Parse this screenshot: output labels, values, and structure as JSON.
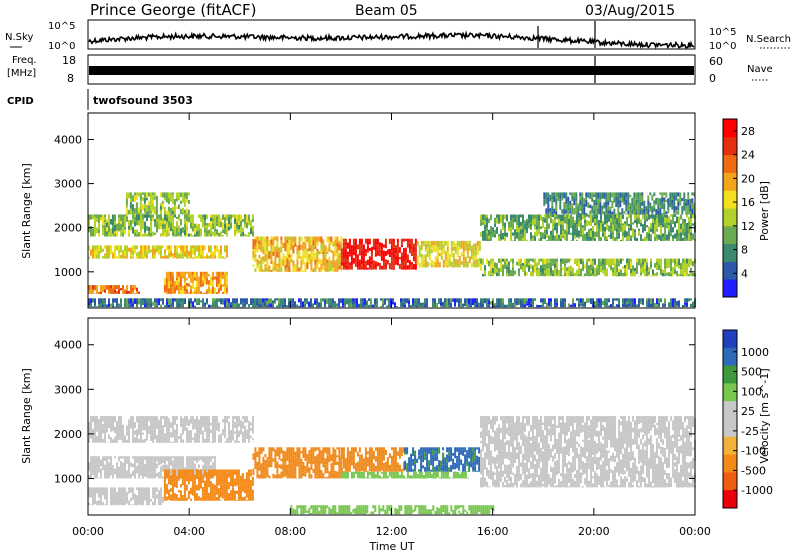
{
  "header": {
    "station": "Prince George (fitACF)",
    "beam": "Beam 05",
    "date": "03/Aug/2015"
  },
  "strip_labels": {
    "nsky": "N.Sky",
    "nsky_ticks": [
      "10^5",
      "10^0"
    ],
    "nsearch": "N.Search",
    "nsearch_ticks": [
      "10^5",
      "10^0"
    ],
    "freq_line1": "Freq.",
    "freq_line2": "[MHz]",
    "freq_ticks": [
      "18",
      "8"
    ],
    "nave": "Nave",
    "nave_ticks": [
      "60",
      "0"
    ],
    "cpid": "CPID",
    "cpid_value": "twofsound 3503"
  },
  "colors": {
    "power_scale": [
      "#1f1fff",
      "#2e58a8",
      "#3c8a6e",
      "#6aaa50",
      "#b2d22a",
      "#f2e01e",
      "#f2a41a",
      "#f06a12",
      "#e43010",
      "#ff0000"
    ],
    "velocity_scale": [
      "#e8000a",
      "#f05c10",
      "#f28a1a",
      "#f2b23a",
      "#c8c8c8",
      "#c8c8c8",
      "#78c850",
      "#3c9a3c",
      "#2e6ab8",
      "#2040c0"
    ]
  },
  "chart_data": [
    {
      "type": "heatmap",
      "title": "Power",
      "ylabel": "Slant Range [km]",
      "xlabel": "Time UT",
      "x_ticks": [
        "00:00",
        "04:00",
        "08:00",
        "12:00",
        "16:00",
        "20:00",
        "00:00"
      ],
      "y_ticks": [
        "1000",
        "2000",
        "3000",
        "4000"
      ],
      "xlim_hours": [
        0,
        24
      ],
      "ylim": [
        180,
        4600
      ],
      "colorbar_label": "Power [dB]",
      "colorbar_ticks": [
        "4",
        "8",
        "12",
        "16",
        "20",
        "24",
        "28"
      ],
      "colorbar_range": [
        0,
        30
      ],
      "echo_bands": [
        {
          "t0": 0.0,
          "t1": 6.5,
          "r0": 1800,
          "r1": 2300,
          "value": 12
        },
        {
          "t0": 0.0,
          "t1": 5.5,
          "r0": 1300,
          "r1": 1600,
          "value": 16
        },
        {
          "t0": 0.0,
          "t1": 2.0,
          "r0": 500,
          "r1": 700,
          "value": 22
        },
        {
          "t0": 3.0,
          "t1": 5.5,
          "r0": 500,
          "r1": 1000,
          "value": 20
        },
        {
          "t0": 1.5,
          "t1": 4.0,
          "r0": 2300,
          "r1": 2800,
          "value": 12
        },
        {
          "t0": 6.5,
          "t1": 10.0,
          "r0": 1000,
          "r1": 1800,
          "value": 18
        },
        {
          "t0": 10.0,
          "t1": 13.0,
          "r0": 1050,
          "r1": 1750,
          "value": 28
        },
        {
          "t0": 13.0,
          "t1": 15.5,
          "r0": 1100,
          "r1": 1700,
          "value": 16
        },
        {
          "t0": 15.5,
          "t1": 24.0,
          "r0": 900,
          "r1": 1300,
          "value": 12
        },
        {
          "t0": 15.5,
          "t1": 24.0,
          "r0": 1700,
          "r1": 2300,
          "value": 10
        },
        {
          "t0": 18.0,
          "t1": 24.0,
          "r0": 2300,
          "r1": 2800,
          "value": 8
        },
        {
          "t0": 0.0,
          "t1": 24.0,
          "r0": 200,
          "r1": 400,
          "value": 6
        }
      ]
    },
    {
      "type": "heatmap",
      "title": "Velocity",
      "ylabel": "Slant Range [km]",
      "xlabel": "Time UT",
      "x_ticks": [
        "00:00",
        "04:00",
        "08:00",
        "12:00",
        "16:00",
        "20:00",
        "00:00"
      ],
      "y_ticks": [
        "1000",
        "2000",
        "3000",
        "4000"
      ],
      "xlim_hours": [
        0,
        24
      ],
      "ylim": [
        180,
        4600
      ],
      "colorbar_label": "Velocity [m s^-1]",
      "colorbar_ticks": [
        "1000",
        "500",
        "100",
        "25",
        "-25",
        "-100",
        "-500",
        "-1000"
      ],
      "echo_bands": [
        {
          "t0": 0.0,
          "t1": 6.5,
          "r0": 1800,
          "r1": 2400,
          "value": 0
        },
        {
          "t0": 0.0,
          "t1": 5.0,
          "r0": 1000,
          "r1": 1500,
          "value": 0
        },
        {
          "t0": 0.0,
          "t1": 3.0,
          "r0": 400,
          "r1": 800,
          "value": 0
        },
        {
          "t0": 3.0,
          "t1": 6.5,
          "r0": 500,
          "r1": 1200,
          "value": -150
        },
        {
          "t0": 6.5,
          "t1": 10.0,
          "r0": 1000,
          "r1": 1700,
          "value": -300
        },
        {
          "t0": 10.0,
          "t1": 12.5,
          "r0": 1150,
          "r1": 1700,
          "value": -200
        },
        {
          "t0": 12.5,
          "t1": 15.5,
          "r0": 1150,
          "r1": 1700,
          "value": 600
        },
        {
          "t0": 10.0,
          "t1": 15.0,
          "r0": 1000,
          "r1": 1150,
          "value": 80
        },
        {
          "t0": 15.5,
          "t1": 24.0,
          "r0": 800,
          "r1": 2400,
          "value": 0
        },
        {
          "t0": 8.0,
          "t1": 16.0,
          "r0": 200,
          "r1": 400,
          "value": 60
        }
      ]
    }
  ]
}
